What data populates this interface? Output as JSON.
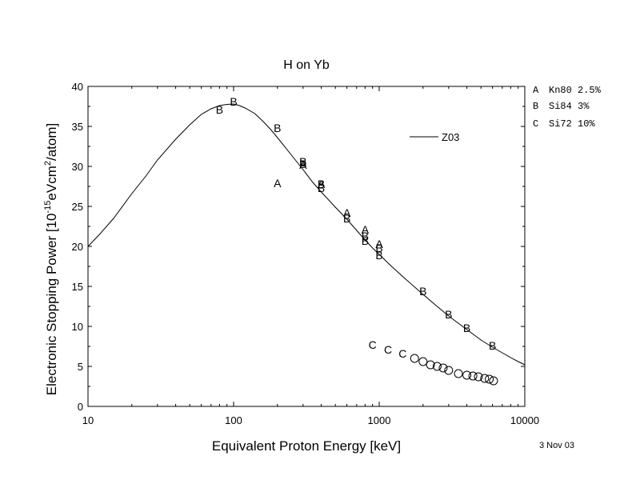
{
  "chart_data": {
    "type": "scatter",
    "title": "H on Yb",
    "xlabel": "Equivalent Proton Energy [keV]",
    "ylabel_parts": {
      "pre": "Electronic Stopping Power [10",
      "sup1": "-15",
      "mid": "eVcm",
      "sup2": "2",
      "post": "/atom]"
    },
    "xscale": "log",
    "xlim": [
      10,
      10000
    ],
    "ylim": [
      0,
      40
    ],
    "xticks": [
      10,
      100,
      1000,
      10000
    ],
    "xtick_labels": [
      "10",
      "100",
      "1000",
      "10000"
    ],
    "yticks": [
      0,
      5,
      10,
      15,
      20,
      25,
      30,
      35,
      40
    ],
    "ytick_labels": [
      "0",
      "5",
      "10",
      "15",
      "20",
      "25",
      "30",
      "35",
      "40"
    ],
    "legend_placement": "right, outside plot",
    "grid": false,
    "legend_entries": [
      {
        "marker": "A",
        "text": "Kn80 2.5%"
      },
      {
        "marker": "B",
        "text": "Si84 3%"
      },
      {
        "marker": "C",
        "text": "Si72 10%"
      }
    ],
    "curve_legend": {
      "name": "Z03"
    },
    "series": [
      {
        "name": "Z03",
        "kind": "line",
        "x": [
          10,
          12,
          15,
          20,
          25,
          30,
          40,
          50,
          60,
          70,
          80,
          90,
          100,
          110,
          120,
          140,
          160,
          180,
          200,
          250,
          300,
          350,
          400,
          500,
          600,
          700,
          800,
          900,
          1000,
          1200,
          1500,
          2000,
          2500,
          3000,
          4000,
          5000,
          6000,
          7000,
          8000,
          9000,
          10000
        ],
        "y": [
          20.0,
          21.5,
          23.5,
          26.6,
          28.8,
          30.8,
          33.4,
          35.2,
          36.5,
          37.2,
          37.6,
          37.75,
          37.8,
          37.6,
          37.3,
          36.6,
          35.6,
          34.6,
          33.6,
          31.4,
          29.6,
          28.0,
          26.8,
          24.9,
          23.4,
          22.0,
          20.8,
          19.8,
          19.0,
          17.6,
          16.0,
          14.0,
          12.5,
          11.3,
          9.6,
          8.3,
          7.4,
          6.7,
          6.1,
          5.6,
          5.2
        ]
      },
      {
        "name": "A",
        "kind": "letter",
        "marker": "A",
        "x": [
          200,
          300,
          400,
          600,
          800,
          1000
        ],
        "y": [
          27.9,
          30.2,
          27.8,
          24.2,
          22.1,
          20.3
        ]
      },
      {
        "name": "B",
        "kind": "letter",
        "marker": "B",
        "x": [
          80,
          100,
          200,
          300,
          300,
          400,
          400,
          600,
          800,
          800,
          1000,
          1000,
          2000,
          3000,
          4000,
          6000
        ],
        "y": [
          37.1,
          38.1,
          34.8,
          30.6,
          30.3,
          27.8,
          27.3,
          23.5,
          21.3,
          20.7,
          19.8,
          18.9,
          14.4,
          11.5,
          9.8,
          7.6
        ]
      },
      {
        "name": "C",
        "kind": "letter",
        "marker": "C",
        "x": [
          900,
          1150,
          1450
        ],
        "y": [
          7.7,
          7.1,
          6.6
        ]
      },
      {
        "name": "C-circles",
        "kind": "circle",
        "x": [
          1750,
          2000,
          2250,
          2500,
          2750,
          3000,
          3500,
          4000,
          4400,
          4800,
          5300,
          5700,
          6100
        ],
        "y": [
          6.0,
          5.6,
          5.2,
          5.0,
          4.8,
          4.5,
          4.1,
          3.9,
          3.8,
          3.7,
          3.5,
          3.4,
          3.2
        ]
      }
    ]
  },
  "footer": {
    "date": "3 Nov 03"
  }
}
